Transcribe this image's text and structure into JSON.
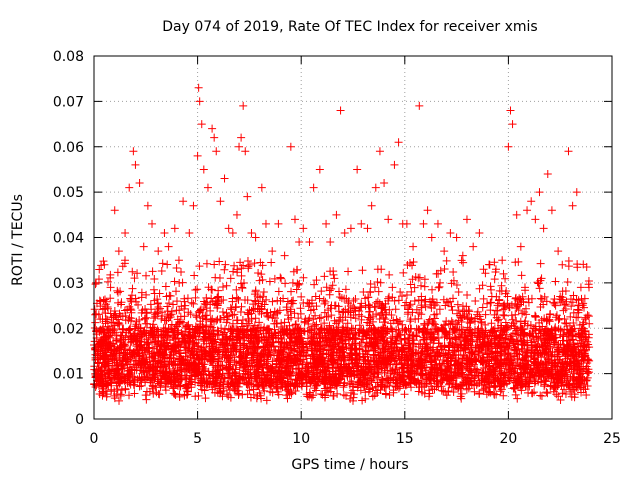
{
  "chart_data": {
    "type": "scatter",
    "title": "Day 074 of 2019, Rate Of TEC Index for receiver xmis",
    "xlabel": "GPS time / hours",
    "ylabel": "ROTI / TECUs",
    "xlim": [
      0,
      25
    ],
    "ylim": [
      0,
      0.08
    ],
    "xticks": [
      0,
      5,
      10,
      15,
      20,
      25
    ],
    "yticks": [
      0,
      0.01,
      0.02,
      0.03,
      0.04,
      0.05,
      0.06,
      0.07,
      0.08
    ],
    "ytick_labels": [
      "0",
      "0.01",
      "0.02",
      "0.03",
      "0.04",
      "0.05",
      "0.06",
      "0.07",
      "0.08"
    ],
    "grid": true,
    "marker": "+",
    "color": "#ff0000",
    "series": [
      {
        "name": "ROTI",
        "points": [
          [
            0.1,
            0.03
          ],
          [
            0.3,
            0.022
          ],
          [
            0.5,
            0.034
          ],
          [
            0.8,
            0.029
          ],
          [
            1.0,
            0.046
          ],
          [
            1.2,
            0.037
          ],
          [
            1.5,
            0.041
          ],
          [
            1.7,
            0.051
          ],
          [
            1.9,
            0.059
          ],
          [
            2.0,
            0.056
          ],
          [
            2.2,
            0.052
          ],
          [
            2.4,
            0.038
          ],
          [
            2.6,
            0.047
          ],
          [
            2.8,
            0.043
          ],
          [
            3.1,
            0.037
          ],
          [
            3.4,
            0.041
          ],
          [
            3.6,
            0.038
          ],
          [
            3.9,
            0.042
          ],
          [
            4.1,
            0.035
          ],
          [
            4.3,
            0.048
          ],
          [
            4.6,
            0.041
          ],
          [
            4.8,
            0.047
          ],
          [
            5.0,
            0.058
          ],
          [
            5.05,
            0.073
          ],
          [
            5.1,
            0.07
          ],
          [
            5.2,
            0.065
          ],
          [
            5.3,
            0.055
          ],
          [
            5.5,
            0.051
          ],
          [
            5.7,
            0.064
          ],
          [
            5.8,
            0.062
          ],
          [
            5.9,
            0.059
          ],
          [
            6.1,
            0.048
          ],
          [
            6.3,
            0.053
          ],
          [
            6.5,
            0.042
          ],
          [
            6.7,
            0.041
          ],
          [
            6.9,
            0.045
          ],
          [
            7.0,
            0.06
          ],
          [
            7.1,
            0.062
          ],
          [
            7.2,
            0.069
          ],
          [
            7.3,
            0.059
          ],
          [
            7.4,
            0.049
          ],
          [
            7.6,
            0.041
          ],
          [
            7.8,
            0.04
          ],
          [
            8.1,
            0.051
          ],
          [
            8.3,
            0.043
          ],
          [
            8.6,
            0.037
          ],
          [
            8.9,
            0.043
          ],
          [
            9.2,
            0.036
          ],
          [
            9.5,
            0.06
          ],
          [
            9.7,
            0.044
          ],
          [
            9.9,
            0.039
          ],
          [
            10.1,
            0.042
          ],
          [
            10.4,
            0.039
          ],
          [
            10.6,
            0.051
          ],
          [
            10.9,
            0.055
          ],
          [
            11.2,
            0.043
          ],
          [
            11.4,
            0.039
          ],
          [
            11.7,
            0.045
          ],
          [
            11.9,
            0.068
          ],
          [
            12.1,
            0.041
          ],
          [
            12.4,
            0.042
          ],
          [
            12.7,
            0.055
          ],
          [
            12.9,
            0.043
          ],
          [
            13.2,
            0.042
          ],
          [
            13.4,
            0.047
          ],
          [
            13.6,
            0.051
          ],
          [
            13.8,
            0.059
          ],
          [
            14.0,
            0.052
          ],
          [
            14.2,
            0.044
          ],
          [
            14.5,
            0.056
          ],
          [
            14.7,
            0.061
          ],
          [
            14.9,
            0.043
          ],
          [
            15.1,
            0.043
          ],
          [
            15.4,
            0.038
          ],
          [
            15.7,
            0.069
          ],
          [
            15.9,
            0.043
          ],
          [
            16.1,
            0.046
          ],
          [
            16.3,
            0.04
          ],
          [
            16.6,
            0.043
          ],
          [
            16.9,
            0.037
          ],
          [
            17.2,
            0.041
          ],
          [
            17.5,
            0.04
          ],
          [
            17.8,
            0.036
          ],
          [
            18.0,
            0.044
          ],
          [
            18.3,
            0.038
          ],
          [
            18.6,
            0.041
          ],
          [
            18.8,
            0.033
          ],
          [
            19.1,
            0.034
          ],
          [
            19.4,
            0.033
          ],
          [
            19.7,
            0.035
          ],
          [
            20.0,
            0.06
          ],
          [
            20.1,
            0.068
          ],
          [
            20.2,
            0.065
          ],
          [
            20.4,
            0.045
          ],
          [
            20.6,
            0.038
          ],
          [
            20.9,
            0.046
          ],
          [
            21.1,
            0.048
          ],
          [
            21.3,
            0.044
          ],
          [
            21.5,
            0.05
          ],
          [
            21.7,
            0.042
          ],
          [
            21.9,
            0.054
          ],
          [
            22.1,
            0.046
          ],
          [
            22.4,
            0.037
          ],
          [
            22.6,
            0.034
          ],
          [
            22.9,
            0.059
          ],
          [
            23.1,
            0.047
          ],
          [
            23.3,
            0.05
          ],
          [
            23.5,
            0.029
          ],
          [
            23.7,
            0.022
          ],
          [
            23.9,
            0.021
          ],
          [
            0.2,
            0.011
          ],
          [
            0.4,
            0.006
          ],
          [
            0.6,
            0.014
          ],
          [
            0.9,
            0.019
          ],
          [
            1.1,
            0.008
          ],
          [
            1.3,
            0.017
          ],
          [
            1.6,
            0.012
          ],
          [
            1.8,
            0.024
          ],
          [
            2.1,
            0.015
          ],
          [
            2.3,
            0.009
          ],
          [
            2.5,
            0.021
          ],
          [
            2.7,
            0.006
          ],
          [
            2.9,
            0.018
          ],
          [
            3.2,
            0.013
          ],
          [
            3.5,
            0.027
          ],
          [
            3.7,
            0.008
          ],
          [
            4.0,
            0.016
          ],
          [
            4.2,
            0.011
          ],
          [
            4.4,
            0.025
          ],
          [
            4.7,
            0.007
          ],
          [
            4.9,
            0.019
          ],
          [
            5.4,
            0.022
          ],
          [
            5.6,
            0.014
          ],
          [
            6.0,
            0.027
          ],
          [
            6.2,
            0.01
          ],
          [
            6.4,
            0.018
          ],
          [
            6.6,
            0.031
          ],
          [
            6.8,
            0.008
          ],
          [
            7.5,
            0.024
          ],
          [
            7.7,
            0.013
          ],
          [
            7.9,
            0.02
          ],
          [
            8.0,
            0.009
          ],
          [
            8.2,
            0.028
          ],
          [
            8.4,
            0.015
          ],
          [
            8.5,
            0.006
          ],
          [
            8.7,
            0.021
          ],
          [
            8.8,
            0.012
          ],
          [
            9.0,
            0.026
          ],
          [
            9.1,
            0.007
          ],
          [
            9.3,
            0.019
          ],
          [
            9.4,
            0.013
          ],
          [
            9.6,
            0.03
          ],
          [
            9.8,
            0.016
          ],
          [
            10.0,
            0.01
          ],
          [
            10.2,
            0.022
          ],
          [
            10.3,
            0.005
          ],
          [
            10.5,
            0.018
          ],
          [
            10.7,
            0.027
          ],
          [
            10.8,
            0.012
          ],
          [
            11.0,
            0.02
          ],
          [
            11.1,
            0.008
          ],
          [
            11.3,
            0.024
          ],
          [
            11.5,
            0.014
          ],
          [
            11.6,
            0.031
          ],
          [
            11.8,
            0.009
          ],
          [
            12.0,
            0.017
          ],
          [
            12.2,
            0.011
          ],
          [
            12.3,
            0.026
          ],
          [
            12.5,
            0.004
          ],
          [
            12.6,
            0.019
          ],
          [
            12.8,
            0.013
          ],
          [
            13.0,
            0.028
          ],
          [
            13.1,
            0.01
          ],
          [
            13.3,
            0.021
          ],
          [
            13.5,
            0.015
          ],
          [
            13.7,
            0.033
          ],
          [
            13.9,
            0.008
          ],
          [
            14.1,
            0.023
          ],
          [
            14.3,
            0.012
          ],
          [
            14.4,
            0.029
          ],
          [
            14.6,
            0.017
          ],
          [
            14.8,
            0.009
          ],
          [
            15.0,
            0.025
          ],
          [
            15.2,
            0.014
          ],
          [
            15.3,
            0.007
          ],
          [
            15.5,
            0.022
          ],
          [
            15.6,
            0.011
          ],
          [
            15.8,
            0.027
          ],
          [
            16.0,
            0.016
          ],
          [
            16.2,
            0.009
          ],
          [
            16.4,
            0.021
          ],
          [
            16.5,
            0.013
          ],
          [
            16.7,
            0.03
          ],
          [
            16.8,
            0.01
          ],
          [
            17.0,
            0.019
          ],
          [
            17.1,
            0.006
          ],
          [
            17.3,
            0.024
          ],
          [
            17.4,
            0.012
          ],
          [
            17.6,
            0.028
          ],
          [
            17.7,
            0.015
          ],
          [
            17.9,
            0.008
          ],
          [
            18.1,
            0.022
          ],
          [
            18.2,
            0.011
          ],
          [
            18.4,
            0.026
          ],
          [
            18.5,
            0.017
          ],
          [
            18.7,
            0.009
          ],
          [
            18.9,
            0.023
          ],
          [
            19.0,
            0.013
          ],
          [
            19.2,
            0.027
          ],
          [
            19.3,
            0.007
          ],
          [
            19.5,
            0.02
          ],
          [
            19.6,
            0.012
          ],
          [
            19.8,
            0.025
          ],
          [
            19.9,
            0.016
          ],
          [
            20.3,
            0.01
          ],
          [
            20.5,
            0.024
          ],
          [
            20.7,
            0.013
          ],
          [
            20.8,
            0.029
          ],
          [
            21.0,
            0.008
          ],
          [
            21.2,
            0.02
          ],
          [
            21.4,
            0.015
          ],
          [
            21.6,
            0.031
          ],
          [
            21.8,
            0.011
          ],
          [
            22.0,
            0.023
          ],
          [
            22.2,
            0.006
          ],
          [
            22.3,
            0.018
          ],
          [
            22.5,
            0.027
          ],
          [
            22.7,
            0.012
          ],
          [
            22.8,
            0.021
          ],
          [
            23.0,
            0.009
          ],
          [
            23.2,
            0.016
          ],
          [
            23.4,
            0.025
          ],
          [
            23.6,
            0.01
          ],
          [
            23.8,
            0.017
          ],
          [
            0.15,
            0.014
          ],
          [
            0.7,
            0.01
          ],
          [
            1.4,
            0.013
          ],
          [
            2.15,
            0.012
          ],
          [
            2.85,
            0.011
          ],
          [
            3.3,
            0.01
          ],
          [
            3.8,
            0.012
          ],
          [
            4.5,
            0.013
          ],
          [
            5.25,
            0.012
          ],
          [
            5.95,
            0.011
          ],
          [
            6.55,
            0.013
          ],
          [
            7.25,
            0.012
          ],
          [
            7.85,
            0.014
          ],
          [
            8.45,
            0.011
          ],
          [
            9.05,
            0.013
          ],
          [
            9.65,
            0.015
          ],
          [
            10.25,
            0.014
          ],
          [
            10.85,
            0.016
          ],
          [
            11.45,
            0.013
          ],
          [
            12.05,
            0.012
          ],
          [
            12.65,
            0.014
          ],
          [
            13.25,
            0.013
          ],
          [
            13.85,
            0.012
          ],
          [
            14.45,
            0.015
          ],
          [
            15.05,
            0.013
          ],
          [
            15.65,
            0.012
          ],
          [
            16.25,
            0.014
          ],
          [
            16.85,
            0.013
          ],
          [
            17.45,
            0.011
          ],
          [
            18.05,
            0.012
          ],
          [
            18.65,
            0.013
          ],
          [
            19.25,
            0.011
          ],
          [
            19.85,
            0.012
          ],
          [
            20.45,
            0.013
          ],
          [
            21.05,
            0.011
          ],
          [
            21.65,
            0.012
          ],
          [
            22.25,
            0.013
          ],
          [
            22.85,
            0.012
          ],
          [
            23.45,
            0.011
          ],
          [
            23.85,
            0.013
          ]
        ]
      }
    ]
  }
}
